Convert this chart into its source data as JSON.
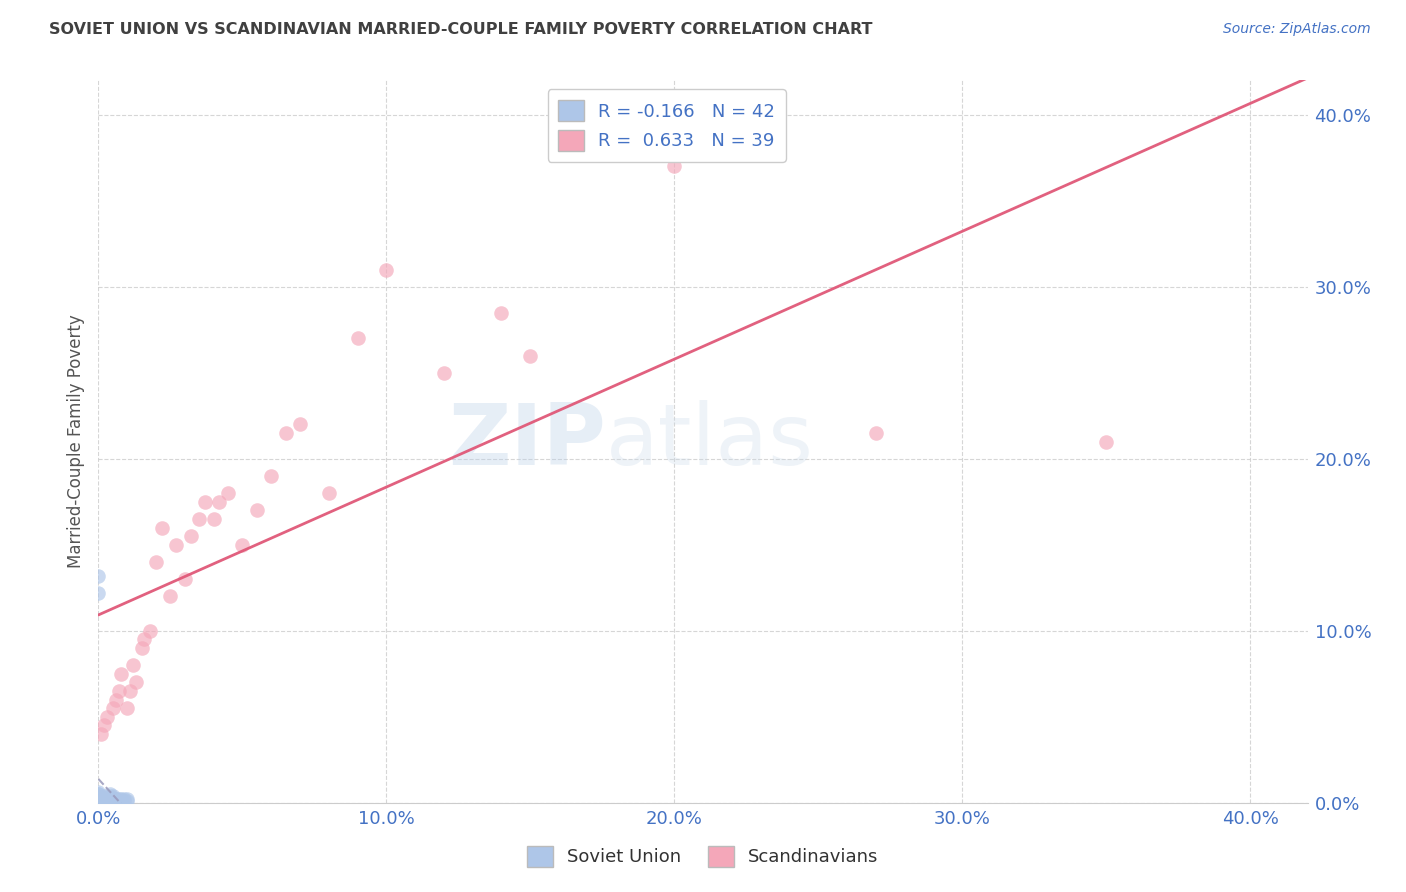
{
  "title": "SOVIET UNION VS SCANDINAVIAN MARRIED-COUPLE FAMILY POVERTY CORRELATION CHART",
  "source": "Source: ZipAtlas.com",
  "ylabel": "Married-Couple Family Poverty",
  "xlim": [
    0.0,
    0.42
  ],
  "ylim": [
    0.0,
    0.42
  ],
  "yticks": [
    0.0,
    0.1,
    0.2,
    0.3,
    0.4
  ],
  "xticks": [
    0.0,
    0.1,
    0.2,
    0.3,
    0.4
  ],
  "soviet_R": -0.166,
  "soviet_N": 42,
  "scand_R": 0.633,
  "scand_N": 39,
  "soviet_color": "#aec6e8",
  "scand_color": "#f4a7b9",
  "soviet_line_color": "#9999bb",
  "scand_line_color": "#e05878",
  "soviet_x": [
    0.0,
    0.0,
    0.0,
    0.0,
    0.0,
    0.0,
    0.0,
    0.0,
    0.0,
    0.0,
    0.0,
    0.0,
    0.0,
    0.0,
    0.0,
    0.0,
    0.0,
    0.002,
    0.002,
    0.002,
    0.002,
    0.002,
    0.004,
    0.004,
    0.004,
    0.004,
    0.004,
    0.004,
    0.005,
    0.005,
    0.005,
    0.005,
    0.006,
    0.006,
    0.007,
    0.007,
    0.008,
    0.008,
    0.009,
    0.009,
    0.01,
    0.01
  ],
  "soviet_y": [
    0.0,
    0.0,
    0.0,
    0.0,
    0.0,
    0.001,
    0.001,
    0.002,
    0.002,
    0.003,
    0.003,
    0.004,
    0.005,
    0.005,
    0.006,
    0.122,
    0.132,
    0.0,
    0.001,
    0.002,
    0.003,
    0.004,
    0.0,
    0.001,
    0.002,
    0.003,
    0.004,
    0.005,
    0.001,
    0.002,
    0.003,
    0.004,
    0.001,
    0.002,
    0.001,
    0.002,
    0.001,
    0.002,
    0.001,
    0.002,
    0.001,
    0.002
  ],
  "scand_x": [
    0.001,
    0.002,
    0.003,
    0.005,
    0.006,
    0.007,
    0.008,
    0.01,
    0.011,
    0.012,
    0.013,
    0.015,
    0.016,
    0.018,
    0.02,
    0.022,
    0.025,
    0.027,
    0.03,
    0.032,
    0.035,
    0.037,
    0.04,
    0.042,
    0.045,
    0.05,
    0.055,
    0.06,
    0.065,
    0.07,
    0.08,
    0.09,
    0.1,
    0.12,
    0.14,
    0.15,
    0.2,
    0.27,
    0.35
  ],
  "scand_y": [
    0.04,
    0.045,
    0.05,
    0.055,
    0.06,
    0.065,
    0.075,
    0.055,
    0.065,
    0.08,
    0.07,
    0.09,
    0.095,
    0.1,
    0.14,
    0.16,
    0.12,
    0.15,
    0.13,
    0.155,
    0.165,
    0.175,
    0.165,
    0.175,
    0.18,
    0.15,
    0.17,
    0.19,
    0.215,
    0.22,
    0.18,
    0.27,
    0.31,
    0.25,
    0.285,
    0.26,
    0.37,
    0.215,
    0.21
  ],
  "watermark_top": "ZIP",
  "watermark_bot": "atlas",
  "background_color": "#ffffff",
  "grid_color": "#cccccc",
  "tick_color": "#4472c4",
  "title_color": "#404040",
  "label_color": "#555555"
}
